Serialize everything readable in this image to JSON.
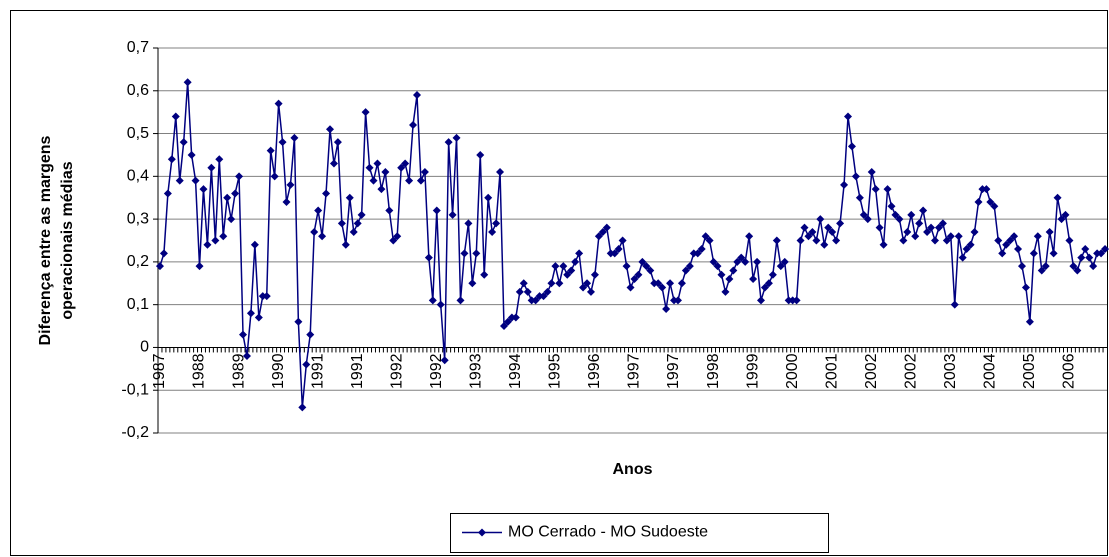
{
  "chart_data": {
    "type": "line",
    "xlabel": "Anos",
    "ylabel": [
      "Diferença entre as margens",
      "operacionais médias"
    ],
    "categories": [
      "1987",
      null,
      null,
      null,
      null,
      null,
      null,
      null,
      null,
      null,
      "1988",
      null,
      null,
      null,
      null,
      null,
      null,
      null,
      null,
      null,
      "1989",
      null,
      null,
      null,
      null,
      null,
      null,
      null,
      null,
      null,
      "1990",
      null,
      null,
      null,
      null,
      null,
      null,
      null,
      null,
      null,
      "1991",
      null,
      null,
      null,
      null,
      null,
      null,
      null,
      null,
      null,
      "1991",
      null,
      null,
      null,
      null,
      null,
      null,
      null,
      null,
      null,
      "1992",
      null,
      null,
      null,
      null,
      null,
      null,
      null,
      null,
      null,
      "1992",
      null,
      null,
      null,
      null,
      null,
      null,
      null,
      null,
      null,
      "1993",
      null,
      null,
      null,
      null,
      null,
      null,
      null,
      null,
      null,
      "1994",
      null,
      null,
      null,
      null,
      null,
      null,
      null,
      null,
      null,
      "1995",
      null,
      null,
      null,
      null,
      null,
      null,
      null,
      null,
      null,
      "1996",
      null,
      null,
      null,
      null,
      null,
      null,
      null,
      null,
      null,
      "1997",
      null,
      null,
      null,
      null,
      null,
      null,
      null,
      null,
      null,
      "1997",
      null,
      null,
      null,
      null,
      null,
      null,
      null,
      null,
      null,
      "1998",
      null,
      null,
      null,
      null,
      null,
      null,
      null,
      null,
      null,
      "1999",
      null,
      null,
      null,
      null,
      null,
      null,
      null,
      null,
      null,
      "2000",
      null,
      null,
      null,
      null,
      null,
      null,
      null,
      null,
      null,
      "2001",
      null,
      null,
      null,
      null,
      null,
      null,
      null,
      null,
      null,
      "2002",
      null,
      null,
      null,
      null,
      null,
      null,
      null,
      null,
      null,
      "2002",
      null,
      null,
      null,
      null,
      null,
      null,
      null,
      null,
      null,
      "2003",
      null,
      null,
      null,
      null,
      null,
      null,
      null,
      null,
      null,
      "2004",
      null,
      null,
      null,
      null,
      null,
      null,
      null,
      null,
      null,
      "2005",
      null,
      null,
      null,
      null,
      null,
      null,
      null,
      null,
      null,
      "2006",
      null,
      null,
      null,
      null,
      null,
      null,
      null,
      null,
      null
    ],
    "series": [
      {
        "name": "MO Cerrado - MO Sudoeste",
        "color": "#000080",
        "values": [
          0.19,
          0.22,
          0.36,
          0.44,
          0.54,
          0.39,
          0.48,
          0.62,
          0.45,
          0.39,
          0.19,
          0.37,
          0.24,
          0.42,
          0.25,
          0.44,
          0.26,
          0.35,
          0.3,
          0.36,
          0.4,
          0.03,
          -0.02,
          0.08,
          0.24,
          0.07,
          0.12,
          0.12,
          0.46,
          0.4,
          0.57,
          0.48,
          0.34,
          0.38,
          0.49,
          0.06,
          -0.14,
          -0.04,
          0.03,
          0.27,
          0.32,
          0.26,
          0.36,
          0.51,
          0.43,
          0.48,
          0.29,
          0.24,
          0.35,
          0.27,
          0.29,
          0.31,
          0.55,
          0.42,
          0.39,
          0.43,
          0.37,
          0.41,
          0.32,
          0.25,
          0.26,
          0.42,
          0.43,
          0.39,
          0.52,
          0.59,
          0.39,
          0.41,
          0.21,
          0.11,
          0.32,
          0.1,
          -0.03,
          0.48,
          0.31,
          0.49,
          0.11,
          0.22,
          0.29,
          0.15,
          0.22,
          0.45,
          0.17,
          0.35,
          0.27,
          0.29,
          0.41,
          0.05,
          0.06,
          0.07,
          0.07,
          0.13,
          0.15,
          0.13,
          0.11,
          0.11,
          0.12,
          0.12,
          0.13,
          0.15,
          0.19,
          0.15,
          0.19,
          0.17,
          0.18,
          0.2,
          0.22,
          0.14,
          0.15,
          0.13,
          0.17,
          0.26,
          0.27,
          0.28,
          0.22,
          0.22,
          0.23,
          0.25,
          0.19,
          0.14,
          0.16,
          0.17,
          0.2,
          0.19,
          0.18,
          0.15,
          0.15,
          0.14,
          0.09,
          0.15,
          0.11,
          0.11,
          0.15,
          0.18,
          0.19,
          0.22,
          0.22,
          0.23,
          0.26,
          0.25,
          0.2,
          0.19,
          0.17,
          0.13,
          0.16,
          0.18,
          0.2,
          0.21,
          0.2,
          0.26,
          0.16,
          0.2,
          0.11,
          0.14,
          0.15,
          0.17,
          0.25,
          0.19,
          0.2,
          0.11,
          0.11,
          0.11,
          0.25,
          0.28,
          0.26,
          0.27,
          0.25,
          0.3,
          0.24,
          0.28,
          0.27,
          0.25,
          0.29,
          0.38,
          0.54,
          0.47,
          0.4,
          0.35,
          0.31,
          0.3,
          0.41,
          0.37,
          0.28,
          0.24,
          0.37,
          0.33,
          0.31,
          0.3,
          0.25,
          0.27,
          0.31,
          0.26,
          0.29,
          0.32,
          0.27,
          0.28,
          0.25,
          0.28,
          0.29,
          0.25,
          0.26,
          0.1,
          0.26,
          0.21,
          0.23,
          0.24,
          0.27,
          0.34,
          0.37,
          0.37,
          0.34,
          0.33,
          0.25,
          0.22,
          0.24,
          0.25,
          0.26,
          0.23,
          0.19,
          0.14,
          0.06,
          0.22,
          0.26,
          0.18,
          0.19,
          0.27,
          0.22,
          0.35,
          0.3,
          0.31,
          0.25,
          0.19,
          0.18,
          0.21,
          0.23,
          0.21,
          0.19,
          0.22,
          0.22,
          0.23
        ]
      }
    ],
    "ylim": [
      -0.2,
      0.7
    ],
    "yticks": [
      {
        "value": -0.2,
        "label": "-0,2"
      },
      {
        "value": -0.1,
        "label": "-0,1"
      },
      0,
      {
        "value": 0.1,
        "label": "0,1"
      },
      {
        "value": 0.2,
        "label": "0,2"
      },
      {
        "value": 0.3,
        "label": "0,3"
      },
      {
        "value": 0.4,
        "label": "0,4"
      },
      {
        "value": 0.5,
        "label": "0,5"
      },
      {
        "value": 0.6,
        "label": "0,6"
      },
      {
        "value": 0.7,
        "label": "0,7"
      }
    ],
    "grid": true,
    "legend": "bottom"
  }
}
